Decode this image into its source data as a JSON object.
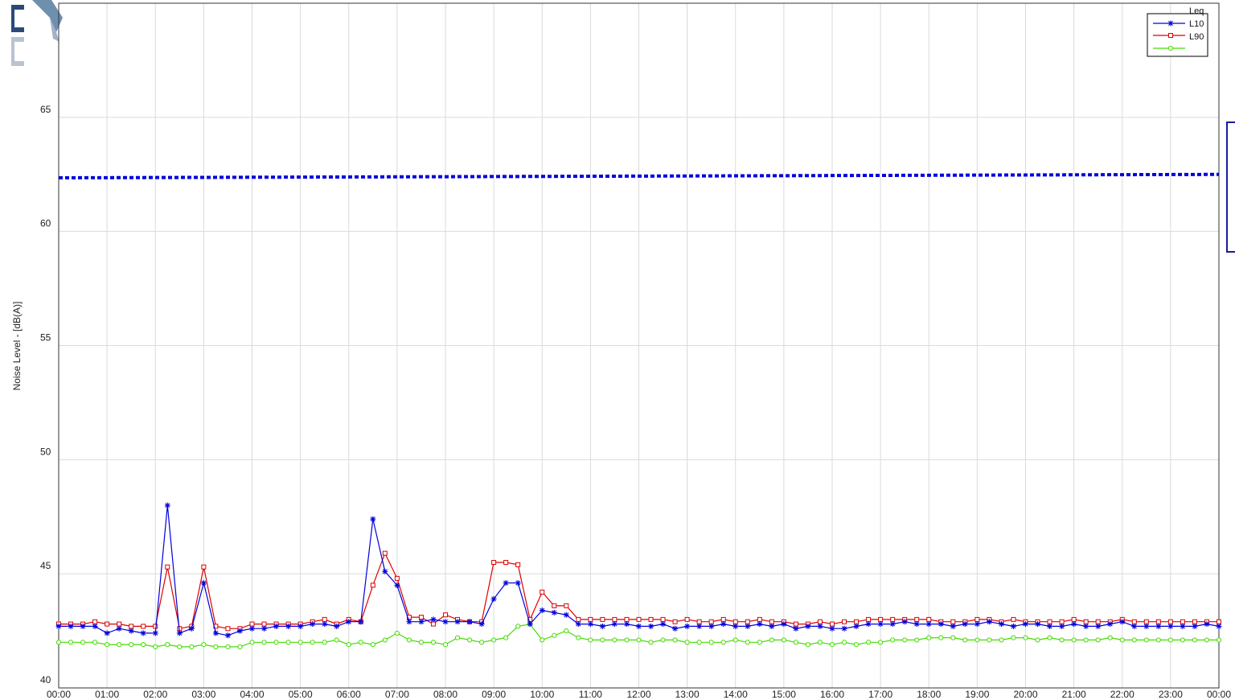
{
  "chart_data": {
    "type": "line",
    "title": "",
    "xlabel": "",
    "ylabel": "Noise Level - [dB(A)]",
    "ylim": [
      40,
      70
    ],
    "yticks": [
      40,
      45,
      50,
      55,
      60,
      65
    ],
    "xlim_hours": [
      0,
      24
    ],
    "x_tick_labels": [
      "00:00",
      "01:00",
      "02:00",
      "03:00",
      "04:00",
      "05:00",
      "06:00",
      "07:00",
      "08:00",
      "09:00",
      "10:00",
      "11:00",
      "12:00",
      "13:00",
      "14:00",
      "15:00",
      "16:00",
      "17:00",
      "18:00",
      "19:00",
      "20:00",
      "21:00",
      "22:00",
      "23:00",
      "00:00"
    ],
    "grid": true,
    "legend_position": "top-right",
    "legend_entries": [
      "Leq",
      "L10",
      "L90"
    ],
    "interval_minutes": 15,
    "series": [
      {
        "name": "L10",
        "color": "#0000dd",
        "marker": "asterisk",
        "values": [
          42.7,
          42.7,
          42.7,
          42.7,
          42.4,
          42.6,
          42.5,
          42.4,
          42.4,
          48.0,
          42.4,
          42.6,
          44.6,
          42.4,
          42.3,
          42.5,
          42.6,
          42.6,
          42.7,
          42.7,
          42.7,
          42.8,
          42.8,
          42.7,
          42.9,
          42.9,
          47.4,
          45.1,
          44.5,
          42.9,
          42.9,
          43.0,
          42.9,
          42.9,
          42.9,
          42.8,
          43.9,
          44.6,
          44.6,
          42.8,
          43.4,
          43.3,
          43.2,
          42.8,
          42.8,
          42.7,
          42.8,
          42.8,
          42.7,
          42.7,
          42.8,
          42.6,
          42.7,
          42.7,
          42.7,
          42.8,
          42.7,
          42.7,
          42.8,
          42.7,
          42.8,
          42.6,
          42.7,
          42.7,
          42.6,
          42.6,
          42.7,
          42.8,
          42.8,
          42.8,
          42.9,
          42.8,
          42.8,
          42.8,
          42.7,
          42.8,
          42.8,
          42.9,
          42.8,
          42.7,
          42.8,
          42.8,
          42.7,
          42.7,
          42.8,
          42.7,
          42.7,
          42.8,
          42.9,
          42.7,
          42.7,
          42.7,
          42.7,
          42.7,
          42.7,
          42.8,
          42.7
        ]
      },
      {
        "name": "L90",
        "color": "#dd0000",
        "marker": "square",
        "values": [
          42.8,
          42.8,
          42.8,
          42.9,
          42.8,
          42.8,
          42.7,
          42.7,
          42.7,
          45.3,
          42.6,
          42.7,
          45.3,
          42.7,
          42.6,
          42.6,
          42.8,
          42.8,
          42.8,
          42.8,
          42.8,
          42.9,
          43.0,
          42.8,
          43.0,
          42.9,
          44.5,
          45.9,
          44.8,
          43.1,
          43.1,
          42.8,
          43.2,
          43.0,
          42.9,
          42.9,
          45.5,
          45.5,
          45.4,
          43.0,
          44.2,
          43.6,
          43.6,
          43.0,
          43.0,
          43.0,
          43.0,
          43.0,
          43.0,
          43.0,
          43.0,
          42.9,
          43.0,
          42.9,
          42.9,
          43.0,
          42.9,
          42.9,
          43.0,
          42.9,
          42.9,
          42.8,
          42.8,
          42.9,
          42.8,
          42.9,
          42.9,
          43.0,
          43.0,
          43.0,
          43.0,
          43.0,
          43.0,
          42.9,
          42.9,
          42.9,
          43.0,
          43.0,
          42.9,
          43.0,
          42.9,
          42.9,
          42.9,
          42.9,
          43.0,
          42.9,
          42.9,
          42.9,
          43.0,
          42.9,
          42.9,
          42.9,
          42.9,
          42.9,
          42.9,
          42.9,
          42.9
        ]
      },
      {
        "color": "#44dd00",
        "marker": "circle",
        "values": [
          42.0,
          42.0,
          42.0,
          42.0,
          41.9,
          41.9,
          41.9,
          41.9,
          41.8,
          41.9,
          41.8,
          41.8,
          41.9,
          41.8,
          41.8,
          41.8,
          42.0,
          42.0,
          42.0,
          42.0,
          42.0,
          42.0,
          42.0,
          42.1,
          41.9,
          42.0,
          41.9,
          42.1,
          42.4,
          42.1,
          42.0,
          42.0,
          41.9,
          42.2,
          42.1,
          42.0,
          42.1,
          42.2,
          42.7,
          42.8,
          42.1,
          42.3,
          42.5,
          42.2,
          42.1,
          42.1,
          42.1,
          42.1,
          42.1,
          42.0,
          42.1,
          42.1,
          42.0,
          42.0,
          42.0,
          42.0,
          42.1,
          42.0,
          42.0,
          42.1,
          42.1,
          42.0,
          41.9,
          42.0,
          41.9,
          42.0,
          41.9,
          42.0,
          42.0,
          42.1,
          42.1,
          42.1,
          42.2,
          42.2,
          42.2,
          42.1,
          42.1,
          42.1,
          42.1,
          42.2,
          42.2,
          42.1,
          42.2,
          42.1,
          42.1,
          42.1,
          42.1,
          42.2,
          42.1,
          42.1,
          42.1,
          42.1,
          42.1,
          42.1,
          42.1,
          42.1,
          42.1
        ]
      },
      {
        "color": "#0000dd",
        "style": "dotted",
        "x_hours": [
          0,
          24
        ],
        "values": [
          62.35,
          62.5
        ]
      }
    ]
  }
}
